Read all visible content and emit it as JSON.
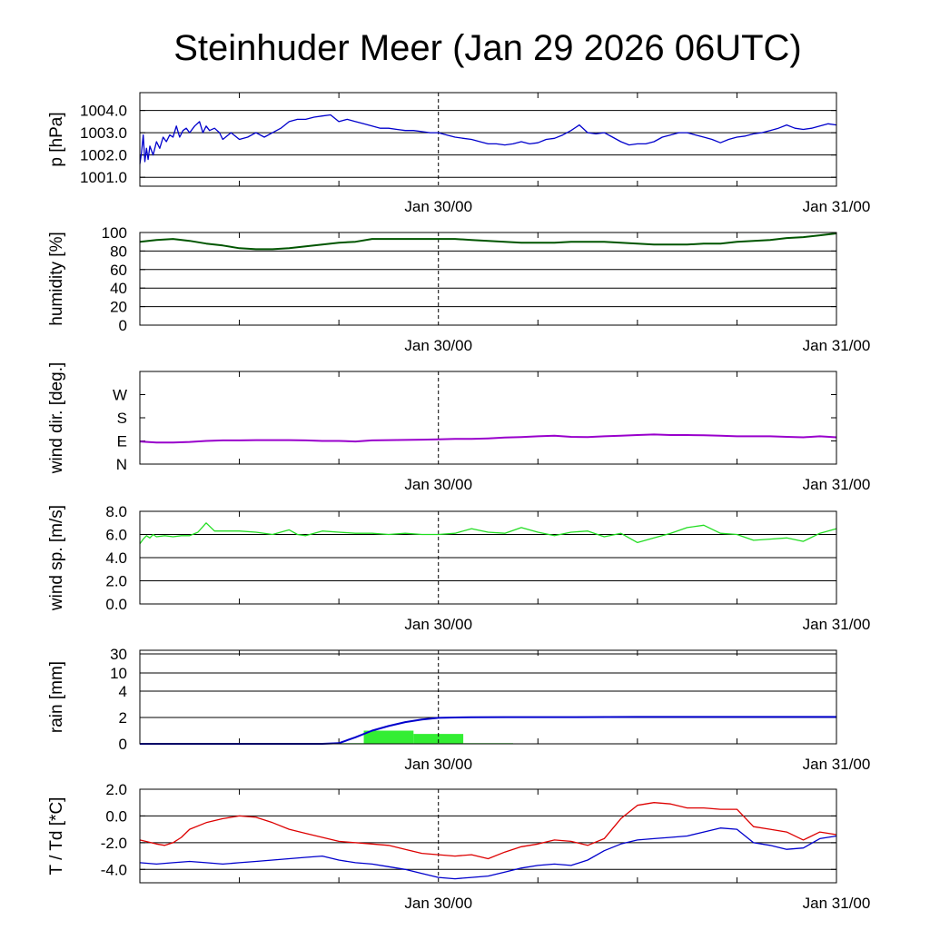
{
  "title": "Steinhuder Meer (Jan 29 2026 06UTC)",
  "x_axis": {
    "tick_labels": [
      "Jan 30/00",
      "Jan 31/00"
    ],
    "start_hour": 0,
    "end_hour": 42,
    "reference_hour": 18
  },
  "chart_data": [
    {
      "id": "pressure",
      "type": "line",
      "ylabel": "p [hPa]",
      "ylim": [
        1000.6,
        1004.8
      ],
      "yticks": [
        1001.0,
        1002.0,
        1003.0,
        1004.0
      ],
      "ytick_labels": [
        "1001.0",
        "1002.0",
        "1003.0",
        "1004.0"
      ],
      "grid": true,
      "series": [
        {
          "name": "p",
          "color": "#0000cc",
          "x": [
            0,
            0.1,
            0.2,
            0.3,
            0.4,
            0.5,
            0.6,
            0.8,
            1.0,
            1.2,
            1.4,
            1.6,
            1.8,
            2.0,
            2.2,
            2.4,
            2.6,
            2.8,
            3.0,
            3.3,
            3.6,
            3.8,
            4.0,
            4.2,
            4.5,
            4.8,
            5.0,
            5.5,
            6.0,
            6.5,
            7.0,
            7.5,
            8.0,
            8.5,
            9.0,
            9.5,
            10.0,
            10.5,
            11.0,
            11.5,
            12.0,
            12.5,
            13.0,
            13.5,
            14.0,
            14.5,
            15.0,
            15.5,
            16.0,
            16.5,
            17.0,
            17.5,
            18.0,
            18.5,
            19.0,
            19.5,
            20.0,
            20.5,
            21.0,
            21.5,
            22.0,
            22.5,
            23.0,
            23.5,
            24.0,
            24.5,
            25.0,
            25.5,
            26.0,
            26.5,
            27.0,
            27.5,
            28.0,
            28.5,
            29.0,
            29.5,
            30.0,
            30.5,
            31.0,
            31.5,
            32.0,
            32.5,
            33.0,
            33.5,
            34.0,
            34.5,
            35.0,
            35.5,
            36.0,
            36.5,
            37.0,
            37.5,
            38.0,
            38.5,
            39.0,
            39.5,
            40.0,
            40.5,
            41.0,
            41.5,
            42.0
          ],
          "values": [
            1001.6,
            1002.1,
            1002.9,
            1001.7,
            1002.3,
            1001.8,
            1002.4,
            1002.0,
            1002.6,
            1002.3,
            1002.8,
            1002.6,
            1002.9,
            1002.8,
            1003.3,
            1002.8,
            1003.1,
            1003.2,
            1003.0,
            1003.3,
            1003.5,
            1003.0,
            1003.3,
            1003.1,
            1003.2,
            1003.0,
            1002.7,
            1003.0,
            1002.7,
            1002.8,
            1003.0,
            1002.8,
            1003.0,
            1003.2,
            1003.5,
            1003.6,
            1003.6,
            1003.7,
            1003.75,
            1003.8,
            1003.5,
            1003.6,
            1003.5,
            1003.4,
            1003.3,
            1003.2,
            1003.2,
            1003.15,
            1003.1,
            1003.1,
            1003.05,
            1003.0,
            1003.0,
            1002.9,
            1002.8,
            1002.75,
            1002.7,
            1002.6,
            1002.5,
            1002.5,
            1002.45,
            1002.5,
            1002.6,
            1002.5,
            1002.55,
            1002.7,
            1002.75,
            1002.9,
            1003.1,
            1003.35,
            1003.0,
            1002.95,
            1003.0,
            1002.8,
            1002.6,
            1002.45,
            1002.5,
            1002.5,
            1002.6,
            1002.8,
            1002.9,
            1003.0,
            1003.0,
            1002.9,
            1002.8,
            1002.7,
            1002.55,
            1002.7,
            1002.8,
            1002.85,
            1002.95,
            1003.0,
            1003.1,
            1003.2,
            1003.35,
            1003.2,
            1003.15,
            1003.2,
            1003.3,
            1003.4,
            1003.35
          ]
        }
      ]
    },
    {
      "id": "humidity",
      "type": "line",
      "ylabel": "humidity [%]",
      "ylim": [
        0,
        100
      ],
      "yticks": [
        0,
        20,
        40,
        60,
        80,
        100
      ],
      "ytick_labels": [
        "0",
        "20",
        "40",
        "60",
        "80",
        "100"
      ],
      "grid": true,
      "series": [
        {
          "name": "humidity",
          "color": "#005500",
          "x": [
            0,
            1,
            2,
            3,
            4,
            5,
            6,
            7,
            8,
            9,
            10,
            11,
            12,
            13,
            14,
            15,
            16,
            17,
            18,
            19,
            20,
            21,
            22,
            23,
            24,
            25,
            26,
            27,
            28,
            29,
            30,
            31,
            32,
            33,
            34,
            35,
            36,
            37,
            38,
            39,
            40,
            41,
            42
          ],
          "values": [
            90,
            92,
            93,
            91,
            88,
            86,
            83,
            82,
            82,
            83,
            85,
            87,
            89,
            90,
            93,
            93,
            93,
            93,
            93,
            93,
            92,
            91,
            90,
            89,
            89,
            89,
            90,
            90,
            90,
            89,
            88,
            87,
            87,
            87,
            88,
            88,
            90,
            91,
            92,
            94,
            95,
            97,
            99
          ]
        }
      ]
    },
    {
      "id": "wind_direction",
      "type": "line",
      "ylabel": "wind dir. [deg.]",
      "ylim": [
        0,
        360
      ],
      "yticks": [
        0,
        90,
        180,
        270
      ],
      "ytick_labels": [
        "N",
        "E",
        "S",
        "W"
      ],
      "grid": false,
      "series": [
        {
          "name": "wind direction",
          "color": "#9900cc",
          "x": [
            0,
            1,
            2,
            3,
            4,
            5,
            6,
            7,
            8,
            9,
            10,
            11,
            12,
            13,
            14,
            15,
            16,
            17,
            18,
            19,
            20,
            21,
            22,
            23,
            24,
            25,
            26,
            27,
            28,
            29,
            30,
            31,
            32,
            33,
            34,
            35,
            36,
            37,
            38,
            39,
            40,
            41,
            42
          ],
          "values": [
            88,
            84,
            84,
            86,
            90,
            92,
            92,
            93,
            93,
            93,
            92,
            90,
            90,
            88,
            92,
            93,
            94,
            95,
            96,
            98,
            98,
            100,
            103,
            105,
            108,
            110,
            106,
            105,
            108,
            110,
            113,
            115,
            113,
            113,
            112,
            110,
            108,
            108,
            108,
            106,
            104,
            108,
            104
          ]
        }
      ]
    },
    {
      "id": "wind_speed",
      "type": "line",
      "ylabel": "wind sp. [m/s]",
      "ylim": [
        0,
        8
      ],
      "yticks": [
        0,
        2,
        4,
        6,
        8
      ],
      "ytick_labels": [
        "0.0",
        "2.0",
        "4.0",
        "6.0",
        "8.0"
      ],
      "grid": true,
      "series": [
        {
          "name": "wind speed",
          "color": "#22dd22",
          "x": [
            0,
            0.2,
            0.4,
            0.6,
            0.8,
            1.0,
            1.5,
            2.0,
            2.5,
            3.0,
            3.5,
            4.0,
            4.5,
            5.0,
            6.0,
            7.0,
            8.0,
            9.0,
            9.5,
            10.0,
            11.0,
            12.0,
            13.0,
            14.0,
            15.0,
            16.0,
            17.0,
            18.0,
            19.0,
            20.0,
            21.0,
            22.0,
            23.0,
            24.0,
            25.0,
            26.0,
            27.0,
            28.0,
            29.0,
            30.0,
            31.0,
            32.0,
            33.0,
            34.0,
            35.0,
            36.0,
            37.0,
            38.0,
            39.0,
            40.0,
            41.0,
            42.0
          ],
          "values": [
            5.2,
            5.6,
            5.9,
            5.7,
            6.0,
            5.8,
            5.9,
            5.8,
            5.9,
            5.9,
            6.2,
            7.0,
            6.3,
            6.3,
            6.3,
            6.2,
            6.0,
            6.4,
            6.0,
            5.9,
            6.3,
            6.2,
            6.1,
            6.1,
            6.0,
            6.1,
            6.0,
            6.0,
            6.1,
            6.5,
            6.2,
            6.1,
            6.6,
            6.2,
            5.9,
            6.2,
            6.3,
            5.8,
            6.1,
            5.3,
            5.7,
            6.1,
            6.6,
            6.8,
            6.1,
            6.0,
            5.5,
            5.6,
            5.7,
            5.4,
            6.1,
            6.5
          ]
        }
      ]
    },
    {
      "id": "rain",
      "type": "bar+line",
      "ylabel": "rain [mm]",
      "yticks": [
        0,
        2,
        4,
        10,
        30
      ],
      "ytick_labels": [
        "0",
        "2",
        "4",
        "10",
        "30"
      ],
      "grid": true,
      "bars": {
        "color": "#33ee33",
        "items": [
          {
            "x0": 10.5,
            "x1": 11.5,
            "value": 0.05
          },
          {
            "x0": 11.5,
            "x1": 13.5,
            "value": 0.05
          },
          {
            "x0": 13.5,
            "x1": 16.5,
            "value": 1.0
          },
          {
            "x0": 16.5,
            "x1": 19.5,
            "value": 0.75
          },
          {
            "x0": 19.5,
            "x1": 22.5,
            "value": 0.05
          }
        ]
      },
      "series": [
        {
          "name": "accumulated rain",
          "color": "#0000cc",
          "x": [
            0,
            10,
            11,
            12,
            13,
            14,
            15,
            16,
            17,
            18,
            19,
            20,
            22,
            26,
            30,
            42
          ],
          "values": [
            0,
            0,
            0,
            0.05,
            0.5,
            1.0,
            1.35,
            1.65,
            1.85,
            1.97,
            2.0,
            2.02,
            2.03,
            2.03,
            2.04,
            2.04
          ]
        }
      ]
    },
    {
      "id": "temperature",
      "type": "line",
      "ylabel": "T / Td [*C]",
      "ylim": [
        -5.0,
        2.0
      ],
      "yticks": [
        -4.0,
        -2.0,
        0.0,
        2.0
      ],
      "ytick_labels": [
        "-4.0",
        "-2.0",
        "0.0",
        "2.0"
      ],
      "grid": true,
      "series": [
        {
          "name": "T",
          "color": "#dd0000",
          "x": [
            0,
            1,
            1.5,
            2,
            2.5,
            3,
            4,
            5,
            6,
            7,
            8,
            9,
            10,
            11,
            12,
            13,
            14,
            15,
            16,
            17,
            18,
            19,
            20,
            21,
            22,
            23,
            24,
            25,
            26,
            27,
            28,
            29,
            30,
            31,
            32,
            33,
            34,
            35,
            36,
            37,
            38,
            39,
            40,
            41,
            42
          ],
          "values": [
            -1.8,
            -2.1,
            -2.2,
            -2.0,
            -1.6,
            -1.0,
            -0.5,
            -0.2,
            0.0,
            -0.1,
            -0.5,
            -1.0,
            -1.3,
            -1.6,
            -1.9,
            -2.0,
            -2.1,
            -2.2,
            -2.5,
            -2.8,
            -2.9,
            -3.0,
            -2.9,
            -3.2,
            -2.7,
            -2.3,
            -2.1,
            -1.8,
            -1.9,
            -2.2,
            -1.7,
            -0.2,
            0.8,
            1.0,
            0.9,
            0.6,
            0.6,
            0.5,
            0.5,
            -0.8,
            -1.0,
            -1.2,
            -1.8,
            -1.2,
            -1.4
          ]
        },
        {
          "name": "Td",
          "color": "#0000cc",
          "x": [
            0,
            1,
            2,
            3,
            4,
            5,
            6,
            7,
            8,
            9,
            10,
            11,
            12,
            13,
            14,
            15,
            16,
            17,
            18,
            19,
            20,
            21,
            22,
            23,
            24,
            25,
            26,
            27,
            28,
            29,
            30,
            31,
            32,
            33,
            34,
            35,
            36,
            37,
            38,
            39,
            40,
            41,
            42
          ],
          "values": [
            -3.5,
            -3.6,
            -3.5,
            -3.4,
            -3.5,
            -3.6,
            -3.5,
            -3.4,
            -3.3,
            -3.2,
            -3.1,
            -3.0,
            -3.3,
            -3.5,
            -3.6,
            -3.8,
            -4.0,
            -4.3,
            -4.6,
            -4.7,
            -4.6,
            -4.5,
            -4.2,
            -3.9,
            -3.7,
            -3.6,
            -3.7,
            -3.3,
            -2.6,
            -2.1,
            -1.8,
            -1.7,
            -1.6,
            -1.5,
            -1.2,
            -0.9,
            -1.0,
            -2.0,
            -2.2,
            -2.5,
            -2.4,
            -1.7,
            -1.5
          ]
        }
      ]
    }
  ]
}
